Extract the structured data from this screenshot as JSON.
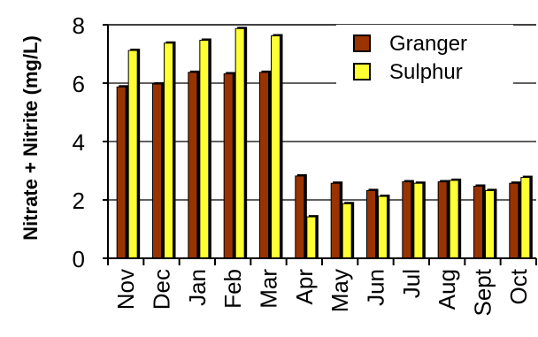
{
  "chart_data": {
    "type": "bar",
    "title": "",
    "xlabel": "",
    "ylabel": "Nitrate + Nitrite (mg/L)",
    "ylim": [
      0,
      8
    ],
    "yticks": [
      "0",
      "2",
      "4",
      "6",
      "8"
    ],
    "categories": [
      "Nov",
      "Dec",
      "Jan",
      "Feb",
      "Mar",
      "Apr",
      "May",
      "Jun",
      "Jul",
      "Aug",
      "Sept",
      "Oct"
    ],
    "series": [
      {
        "name": "Granger",
        "color": "#993300",
        "values": [
          5.9,
          6.0,
          6.4,
          6.35,
          6.4,
          2.85,
          2.6,
          2.35,
          2.65,
          2.65,
          2.5,
          2.6
        ]
      },
      {
        "name": "Sulphur",
        "color": "#ffff33",
        "values": [
          7.15,
          7.4,
          7.5,
          7.9,
          7.65,
          1.45,
          1.9,
          2.15,
          2.6,
          2.7,
          2.35,
          2.8
        ]
      }
    ],
    "grid": "horizontal",
    "legend": "top-right"
  }
}
